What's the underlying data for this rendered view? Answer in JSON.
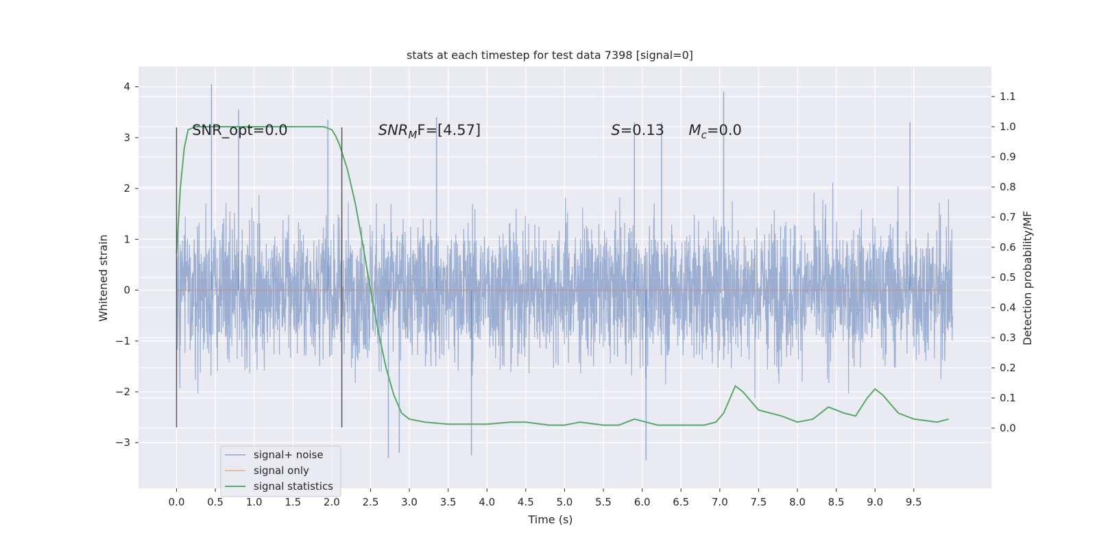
{
  "chart_data": {
    "type": "line",
    "title": "stats at each timestep for test data 7398 [signal=0]",
    "xlabel": "Time (s)",
    "ylabel": "Whitened strain",
    "ylabel_right": "Detection probability/MF",
    "xlim": [
      -0.49,
      10.5
    ],
    "ylim": [
      -3.9,
      4.4
    ],
    "ylim_right": [
      -0.2,
      1.2
    ],
    "x_ticks": [
      "0.0",
      "0.5",
      "1.0",
      "1.5",
      "2.0",
      "2.5",
      "3.0",
      "3.5",
      "4.0",
      "4.5",
      "5.0",
      "5.5",
      "6.0",
      "6.5",
      "7.0",
      "7.5",
      "8.0",
      "8.5",
      "9.0",
      "9.5"
    ],
    "y_ticks": [
      "−3",
      "−2",
      "−1",
      "0",
      "1",
      "2",
      "3",
      "4"
    ],
    "y_ticks_right": [
      "0.0",
      "0.1",
      "0.2",
      "0.3",
      "0.4",
      "0.5",
      "0.6",
      "0.7",
      "0.8",
      "0.9",
      "1.0",
      "1.1"
    ],
    "grid": true,
    "background": "#eaeaf2",
    "legend_position": "lower-left",
    "annotations": [
      {
        "text": "SNR_opt=0.0",
        "x": 0.2,
        "y": 3.2
      },
      {
        "text_main": "SNR",
        "text_sub": "M",
        "text_rest": "F=[4.57]",
        "italic": true,
        "x": 2.6,
        "y": 3.2
      },
      {
        "text_main": "S",
        "text_rest": "=0.13",
        "italic": true,
        "x": 5.6,
        "y": 3.2
      },
      {
        "text_main": "M",
        "text_sub": "c",
        "text_rest": "=0.0",
        "italic": true,
        "x": 6.6,
        "y": 3.2
      }
    ],
    "vlines": [
      {
        "x": 0.0,
        "y": [
          -2.7,
          3.2
        ]
      },
      {
        "x": 2.13,
        "y": [
          -2.7,
          3.2
        ]
      }
    ],
    "series": [
      {
        "name": "signal+ noise",
        "color": "#4c72b0",
        "axis": "left",
        "x_range": [
          0.0,
          10.0
        ],
        "display": "dense noise, typical amplitude about ±2, peak 4.05 near t=0.45, minimum about −3.35 near t=6.0",
        "peaks": [
          [
            0.45,
            4.05
          ],
          [
            7.05,
            3.9
          ],
          [
            0.8,
            3.55
          ],
          [
            1.95,
            3.35
          ],
          [
            3.35,
            3.4
          ],
          [
            5.9,
            3.3
          ],
          [
            6.25,
            3.3
          ],
          [
            9.45,
            3.3
          ],
          [
            2.73,
            -3.3
          ],
          [
            3.8,
            -3.25
          ],
          [
            6.05,
            -3.35
          ],
          [
            2.87,
            -3.2
          ]
        ]
      },
      {
        "name": "signal only",
        "color": "#dd8452",
        "axis": "left",
        "x": [
          0.0,
          10.0
        ],
        "y": [
          0.0,
          0.0
        ]
      },
      {
        "name": "signal statistics",
        "color": "#55a868",
        "axis": "right",
        "x": [
          0.0,
          0.05,
          0.1,
          0.15,
          0.25,
          0.5,
          1.0,
          1.5,
          1.9,
          2.0,
          2.05,
          2.1,
          2.2,
          2.3,
          2.4,
          2.5,
          2.6,
          2.7,
          2.8,
          2.9,
          3.0,
          3.2,
          3.5,
          4.0,
          4.3,
          4.5,
          4.8,
          5.0,
          5.2,
          5.5,
          5.7,
          5.9,
          6.05,
          6.2,
          6.5,
          6.8,
          6.95,
          7.05,
          7.2,
          7.3,
          7.5,
          7.8,
          8.0,
          8.2,
          8.4,
          8.6,
          8.75,
          8.9,
          9.0,
          9.1,
          9.3,
          9.5,
          9.8,
          9.95
        ],
        "y": [
          0.58,
          0.8,
          0.93,
          0.99,
          1.0,
          1.0,
          1.0,
          1.0,
          1.0,
          0.99,
          0.97,
          0.94,
          0.86,
          0.75,
          0.61,
          0.46,
          0.32,
          0.2,
          0.11,
          0.05,
          0.03,
          0.02,
          0.013,
          0.013,
          0.02,
          0.02,
          0.01,
          0.01,
          0.02,
          0.01,
          0.01,
          0.03,
          0.02,
          0.01,
          0.01,
          0.01,
          0.02,
          0.05,
          0.14,
          0.12,
          0.06,
          0.04,
          0.02,
          0.03,
          0.07,
          0.05,
          0.04,
          0.1,
          0.13,
          0.11,
          0.05,
          0.03,
          0.02,
          0.03
        ]
      }
    ]
  }
}
